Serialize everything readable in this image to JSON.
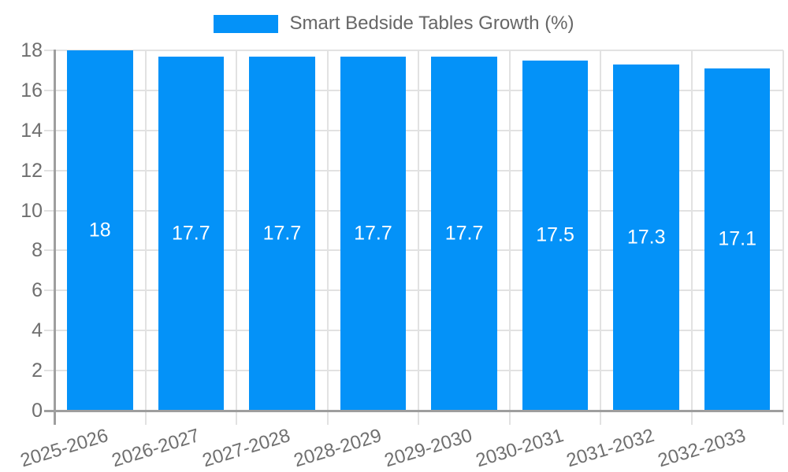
{
  "chart_data": {
    "type": "bar",
    "title": "Smart Bedside Tables Growth (%)",
    "legend": {
      "label": "Smart Bedside Tables Growth (%)",
      "position": "top-center"
    },
    "categories": [
      "2025-2026",
      "2026-2027",
      "2027-2028",
      "2028-2029",
      "2029-2030",
      "2030-2031",
      "2031-2032",
      "2032-2033"
    ],
    "values": [
      18,
      17.7,
      17.7,
      17.7,
      17.7,
      17.5,
      17.3,
      17.1
    ],
    "value_labels": [
      "18",
      "17.7",
      "17.7",
      "17.7",
      "17.7",
      "17.5",
      "17.3",
      "17.1"
    ],
    "xlabel": "",
    "ylabel": "",
    "ylim": [
      0,
      18
    ],
    "yticks": [
      0,
      2,
      4,
      6,
      8,
      10,
      12,
      14,
      16,
      18
    ],
    "grid": true,
    "value_label_position": "center-of-bar",
    "x_tick_rotation_deg": -17,
    "colors": {
      "bar": "#0492f8",
      "gridline": "#e2e2e2",
      "axis": "#9e9e9e",
      "tick_label": "#6f6f6f",
      "legend_label": "#666666",
      "value_label": "#ffffff",
      "background": "#ffffff"
    }
  }
}
